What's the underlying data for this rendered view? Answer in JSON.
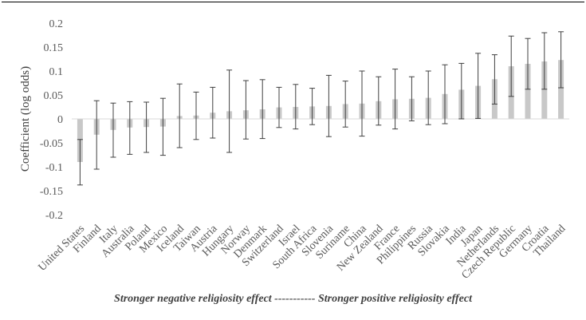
{
  "chart_data": {
    "type": "bar",
    "title": "",
    "ylabel": "Coefficient (log odds)",
    "xlabel": "",
    "ylim": [
      -0.2,
      0.2
    ],
    "yticks": [
      -0.2,
      -0.15,
      -0.1,
      -0.05,
      0,
      0.05,
      0.1,
      0.15,
      0.2
    ],
    "ytick_labels": [
      "-0.2",
      "-0.15",
      "-0.1",
      "-0.05",
      "0",
      "0.05",
      "0.1",
      "0.15",
      "0.2"
    ],
    "grid": false,
    "bar_color": "#c8c8c8",
    "error_bar_color": "#404040",
    "categories": [
      "United States",
      "Finland",
      "Italy",
      "Australia",
      "Poland",
      "Mexico",
      "Iceland",
      "Taiwan",
      "Austria",
      "Hungary",
      "Norway",
      "Denmark",
      "Switzerland",
      "Israel",
      "South Africa",
      "Slovenia",
      "Suriname",
      "China",
      "New Zealand",
      "France",
      "Philippines",
      "Russia",
      "Slovakia",
      "India",
      "Japan",
      "Netherlands",
      "Czech Republic",
      "Germany",
      "Croatia",
      "Thailand"
    ],
    "values": [
      -0.09,
      -0.033,
      -0.023,
      -0.018,
      -0.017,
      -0.016,
      0.006,
      0.007,
      0.013,
      0.016,
      0.018,
      0.02,
      0.024,
      0.025,
      0.026,
      0.027,
      0.031,
      0.032,
      0.037,
      0.041,
      0.042,
      0.044,
      0.052,
      0.061,
      0.069,
      0.083,
      0.11,
      0.115,
      0.12,
      0.123
    ],
    "error_low": [
      -0.138,
      -0.105,
      -0.08,
      -0.074,
      -0.07,
      -0.076,
      -0.06,
      -0.043,
      -0.04,
      -0.07,
      -0.042,
      -0.041,
      -0.018,
      -0.021,
      -0.012,
      -0.037,
      -0.017,
      -0.036,
      -0.013,
      -0.021,
      -0.004,
      -0.012,
      -0.01,
      0.0,
      0.001,
      0.031,
      0.047,
      0.062,
      0.062,
      0.065
    ],
    "error_high": [
      -0.043,
      0.038,
      0.033,
      0.036,
      0.035,
      0.043,
      0.073,
      0.056,
      0.066,
      0.102,
      0.08,
      0.082,
      0.066,
      0.072,
      0.064,
      0.091,
      0.079,
      0.1,
      0.088,
      0.104,
      0.088,
      0.1,
      0.113,
      0.116,
      0.137,
      0.134,
      0.173,
      0.168,
      0.18,
      0.182
    ],
    "caption": "Stronger negative religiosity effect ----------- Stronger positive religiosity effect"
  }
}
